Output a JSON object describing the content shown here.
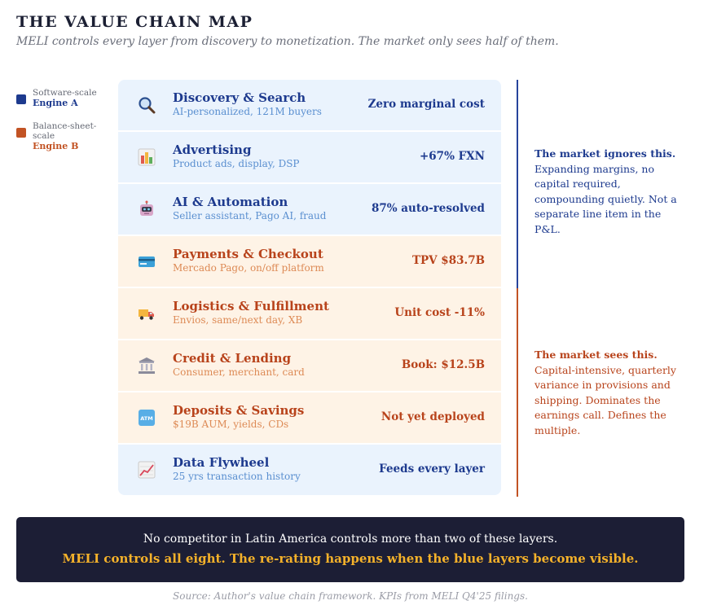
{
  "header": {
    "title": "THE VALUE CHAIN MAP",
    "subtitle": "MELI controls every layer from discovery to monetization. The market only sees half of them."
  },
  "legend": [
    {
      "caption": "Software-scale",
      "name": "Engine A",
      "color": "#1d3a8e"
    },
    {
      "caption": "Balance-sheet-scale",
      "name": "Engine B",
      "color": "#c25324"
    }
  ],
  "layers": [
    {
      "name": "Discovery & Search",
      "sub": "AI-personalized, 121M buyers",
      "kpi": "Zero marginal cost",
      "engine": "A",
      "icon": "magnifier-icon"
    },
    {
      "name": "Advertising",
      "sub": "Product ads, display, DSP",
      "kpi": "+67% FXN",
      "engine": "A",
      "icon": "bar-chart-icon"
    },
    {
      "name": "AI & Automation",
      "sub": "Seller assistant, Pago AI, fraud",
      "kpi": "87% auto-resolved",
      "engine": "A",
      "icon": "robot-icon"
    },
    {
      "name": "Payments & Checkout",
      "sub": "Mercado Pago, on/off platform",
      "kpi": "TPV $83.7B",
      "engine": "B",
      "icon": "credit-card-icon"
    },
    {
      "name": "Logistics & Fulfillment",
      "sub": "Envios, same/next day, XB",
      "kpi": "Unit cost -11%",
      "engine": "B",
      "icon": "delivery-truck-icon"
    },
    {
      "name": "Credit & Lending",
      "sub": "Consumer, merchant, card",
      "kpi": "Book: $12.5B",
      "engine": "B",
      "icon": "bank-icon"
    },
    {
      "name": "Deposits & Savings",
      "sub": "$19B AUM, yields, CDs",
      "kpi": "Not yet deployed",
      "engine": "B",
      "icon": "atm-icon"
    },
    {
      "name": "Data Flywheel",
      "sub": "25 yrs transaction history",
      "kpi": "Feeds every layer",
      "engine": "A",
      "icon": "trend-chart-icon"
    }
  ],
  "notes": {
    "blue": {
      "lead": "The market ignores this.",
      "body": "Expanding margins, no capital required, compounding quietly. Not a separate line item in the P&L."
    },
    "orange": {
      "lead": "The market sees this.",
      "body": "Capital-intensive, quarterly variance in provisions and shipping. Dominates the earnings call. Defines the multiple."
    }
  },
  "banner": {
    "line1": "No competitor in Latin America controls more than two of these layers.",
    "line2": "MELI controls all eight. The re-rating happens when the blue layers become visible."
  },
  "source": "Source: Author's value chain framework. KPIs from MELI Q4'25 filings.",
  "colors": {
    "engine_a": "#1d3a8e",
    "engine_b": "#c25324",
    "banner_bg": "#1c1e35",
    "banner_accent": "#f5b22a"
  }
}
